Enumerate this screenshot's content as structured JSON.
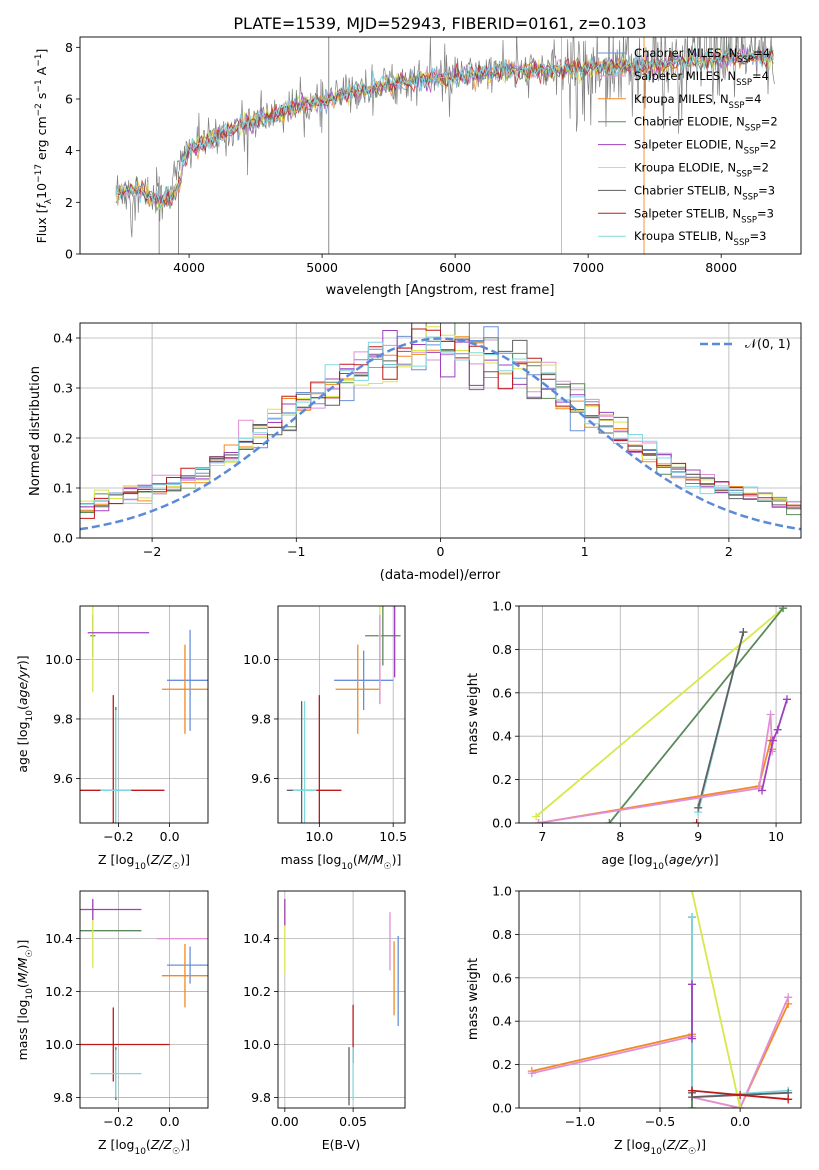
{
  "figure": {
    "title": "PLATE=1539, MJD=52943, FIBERID=0161, z=0.103"
  },
  "legend_top": [
    {
      "label": "Chabrier MILES, N",
      "sub": "SSP",
      "tail": "=4",
      "color": "#6a8fd8"
    },
    {
      "label": "Salpeter MILES, N",
      "sub": "SSP",
      "tail": "=4",
      "color": "#e08fd8"
    },
    {
      "label": "Kroupa MILES, N",
      "sub": "SSP",
      "tail": "=4",
      "color": "#f08a22"
    },
    {
      "label": "Chabrier ELODIE, N",
      "sub": "SSP",
      "tail": "=2",
      "color": "#5a8a5a"
    },
    {
      "label": "Salpeter ELODIE, N",
      "sub": "SSP",
      "tail": "=2",
      "color": "#a040c0"
    },
    {
      "label": "Kroupa ELODIE, N",
      "sub": "SSP",
      "tail": "=2",
      "color": "#d8e84a"
    },
    {
      "label": "Chabrier STELIB, N",
      "sub": "SSP",
      "tail": "=3",
      "color": "#606060"
    },
    {
      "label": "Salpeter STELIB, N",
      "sub": "SSP",
      "tail": "=3",
      "color": "#c01818"
    },
    {
      "label": "Kroupa STELIB, N",
      "sub": "SSP",
      "tail": "=3",
      "color": "#80d8e0"
    }
  ],
  "colors": [
    "#6a8fd8",
    "#e08fd8",
    "#f08a22",
    "#5a8a5a",
    "#a040c0",
    "#d8e84a",
    "#606060",
    "#c01818",
    "#80d8e0"
  ],
  "axes_text": {
    "spec_xlabel": "wavelength [Angstrom, rest frame]",
    "spec_ylabel": "Flux [f",
    "hist_xlabel": "(data-model)/error",
    "hist_ylabel": "Normed distribution",
    "hist_legend": "𝒩(0, 1)",
    "age_ylabel": "age  [log",
    "z_xlabel": "Z [log",
    "mass_xlabel": "mass [log",
    "mw_ylabel": "mass weight",
    "age_xlabel": "age  [log",
    "mass_ylabel": "mass [log",
    "ebv_xlabel": "E(B-V)"
  },
  "chart_data": [
    {
      "type": "line",
      "title": "PLATE=1539, MJD=52943, FIBERID=0161, z=0.103",
      "xlabel": "wavelength [Angstrom, rest frame]",
      "ylabel": "Flux [f_λ 10^-17 erg cm^-2 s^-1 A^-1]",
      "xlim": [
        3180,
        8600
      ],
      "ylim": [
        0,
        8.4
      ],
      "xticks": [
        4000,
        5000,
        6000,
        7000,
        8000
      ],
      "yticks": [
        0,
        2,
        4,
        6,
        8
      ],
      "continuum": {
        "x": [
          3450,
          3600,
          3800,
          4000,
          4200,
          4400,
          4600,
          4800,
          5000,
          5200,
          5500,
          6000,
          6500,
          7000,
          7500,
          8000,
          8400
        ],
        "y": [
          2.4,
          2.5,
          2.0,
          4.1,
          4.5,
          5.0,
          5.3,
          5.7,
          5.9,
          6.2,
          6.6,
          6.9,
          7.1,
          7.2,
          7.3,
          7.6,
          7.6
        ]
      },
      "data_noise_amplitude": 0.9,
      "grid": false,
      "legend": "top-right"
    },
    {
      "type": "histogram",
      "xlabel": "(data-model)/error",
      "ylabel": "Normed distribution",
      "xlim": [
        -2.5,
        2.5
      ],
      "ylim": [
        0,
        0.43
      ],
      "xticks": [
        -2,
        -1,
        0,
        1,
        2
      ],
      "yticks": [
        0.0,
        0.1,
        0.2,
        0.3,
        0.4
      ],
      "bin_width": 0.1,
      "reference": {
        "name": "𝒩(0, 1)",
        "mean": 0,
        "sigma": 1,
        "style": "dashed"
      },
      "grid": true,
      "legend": "top-right"
    },
    {
      "type": "scatter",
      "xlabel": "Z [log10(Z/Z☉)]",
      "ylabel": "age [log10(age/yr)]",
      "xlim": [
        -0.35,
        0.15
      ],
      "ylim": [
        9.45,
        10.18
      ],
      "xticks": [
        -0.2,
        0.0
      ],
      "yticks": [
        9.6,
        9.8,
        10.0
      ],
      "points": [
        {
          "x": 0.08,
          "y": 10.1,
          "xe": 0.0,
          "ye": 0.0,
          "color": "#6a8fd8"
        },
        {
          "x": 0.08,
          "y": 9.93,
          "xe": 0.09,
          "ye": 0.17,
          "color": "#6a8fd8"
        },
        {
          "x": 0.06,
          "y": 9.9,
          "xe": 0.09,
          "ye": 0.15,
          "color": "#f08a22"
        },
        {
          "x": -0.3,
          "y": 10.08,
          "xe": 0.01,
          "ye": 0.07,
          "color": "#5a8a5a"
        },
        {
          "x": -0.3,
          "y": 10.08,
          "xe": 0.0,
          "ye": 0.19,
          "color": "#d8e84a"
        },
        {
          "x": -0.2,
          "y": 10.09,
          "xe": 0.12,
          "ye": 0.0,
          "color": "#a040c0"
        },
        {
          "x": -0.21,
          "y": 9.56,
          "xe": 0.0,
          "ye": 0.28,
          "color": "#606060"
        },
        {
          "x": -0.2,
          "y": 9.56,
          "xe": 0.18,
          "ye": 0.0,
          "color": "#c01818"
        },
        {
          "x": -0.22,
          "y": 9.56,
          "xe": 0.0,
          "ye": 0.32,
          "color": "#c01818"
        },
        {
          "x": -0.21,
          "y": 9.56,
          "xe": 0.06,
          "ye": 0.27,
          "color": "#80d8e0"
        }
      ],
      "grid": true
    },
    {
      "type": "scatter",
      "xlabel": "mass [log10(M/M☉)]",
      "ylabel": "",
      "xlim": [
        9.72,
        10.58
      ],
      "ylim": [
        9.45,
        10.18
      ],
      "xticks": [
        10.0,
        10.5
      ],
      "yticks": [
        9.6,
        9.8,
        10.0
      ],
      "points": [
        {
          "x": 10.3,
          "y": 9.93,
          "xe": 0.2,
          "ye": 0.1,
          "color": "#6a8fd8"
        },
        {
          "x": 10.26,
          "y": 9.9,
          "xe": 0.15,
          "ye": 0.15,
          "color": "#f08a22"
        },
        {
          "x": 10.43,
          "y": 10.08,
          "xe": 0.12,
          "ye": 0.1,
          "color": "#5a8a5a"
        },
        {
          "x": 10.41,
          "y": 10.08,
          "xe": 0.01,
          "ye": 0.23,
          "color": "#d8e84a"
        },
        {
          "x": 10.51,
          "y": 10.09,
          "xe": 0.0,
          "ye": 0.15,
          "color": "#a040c0"
        },
        {
          "x": 10.41,
          "y": 10.0,
          "xe": 0.0,
          "ye": 0.15,
          "color": "#e08fd8"
        },
        {
          "x": 9.88,
          "y": 9.56,
          "xe": 0.1,
          "ye": 0.3,
          "color": "#606060"
        },
        {
          "x": 10.0,
          "y": 9.56,
          "xe": 0.15,
          "ye": 0.32,
          "color": "#c01818"
        },
        {
          "x": 9.9,
          "y": 9.56,
          "xe": 0.08,
          "ye": 0.3,
          "color": "#80d8e0"
        }
      ],
      "grid": true
    },
    {
      "type": "line",
      "xlabel": "age [log10(age/yr)]",
      "ylabel": "mass weight",
      "xlim": [
        6.7,
        10.32
      ],
      "ylim": [
        0,
        1.0
      ],
      "xticks": [
        7,
        8,
        9,
        10
      ],
      "yticks": [
        0.0,
        0.2,
        0.4,
        0.6,
        0.8,
        1.0
      ],
      "series": [
        {
          "color": "#d8e84a",
          "x": [
            6.92,
            10.09
          ],
          "y": [
            0.03,
            0.99
          ]
        },
        {
          "color": "#5a8a5a",
          "x": [
            7.86,
            10.09
          ],
          "y": [
            0.0,
            0.99
          ]
        },
        {
          "color": "#80d8e0",
          "x": [
            9.0,
            9.58
          ],
          "y": [
            0.05,
            0.88
          ]
        },
        {
          "color": "#606060",
          "x": [
            9.0,
            9.58
          ],
          "y": [
            0.07,
            0.88
          ]
        },
        {
          "color": "#f08a22",
          "x": [
            6.95,
            9.78,
            9.93,
            9.95
          ],
          "y": [
            0.0,
            0.17,
            0.38,
            0.34
          ]
        },
        {
          "color": "#e08fd8",
          "x": [
            6.95,
            9.78,
            9.93,
            9.95
          ],
          "y": [
            0.0,
            0.16,
            0.5,
            0.33
          ]
        },
        {
          "color": "#a040c0",
          "x": [
            9.82,
            9.96,
            10.02,
            10.14
          ],
          "y": [
            0.15,
            0.38,
            0.43,
            0.57
          ]
        },
        {
          "color": "#c01818",
          "x": [
            8.98
          ],
          "y": [
            0.0
          ]
        }
      ],
      "grid": true
    },
    {
      "type": "scatter",
      "xlabel": "Z [log10(Z/Z☉)]",
      "ylabel": "mass [log10(M/M☉)]",
      "xlim": [
        -0.35,
        0.15
      ],
      "ylim": [
        9.76,
        10.58
      ],
      "xticks": [
        -0.2,
        0.0
      ],
      "yticks": [
        9.8,
        10.0,
        10.2,
        10.4
      ],
      "points": [
        {
          "x": 0.08,
          "y": 10.3,
          "xe": 0.09,
          "ye": 0.07,
          "color": "#6a8fd8"
        },
        {
          "x": 0.06,
          "y": 10.26,
          "xe": 0.09,
          "ye": 0.12,
          "color": "#f08a22"
        },
        {
          "x": 0.06,
          "y": 10.4,
          "xe": 0.11,
          "ye": 0.0,
          "color": "#e08fd8"
        },
        {
          "x": -0.3,
          "y": 10.43,
          "xe": 0.19,
          "ye": 0.0,
          "color": "#5a8a5a"
        },
        {
          "x": -0.3,
          "y": 10.41,
          "xe": 0.0,
          "ye": 0.12,
          "color": "#d8e84a"
        },
        {
          "x": -0.3,
          "y": 10.51,
          "xe": 0.19,
          "ye": 0.04,
          "color": "#a040c0"
        },
        {
          "x": -0.21,
          "y": 9.89,
          "xe": 0.0,
          "ye": 0.1,
          "color": "#606060"
        },
        {
          "x": -0.22,
          "y": 10.0,
          "xe": 0.22,
          "ye": 0.14,
          "color": "#c01818"
        },
        {
          "x": -0.21,
          "y": 9.89,
          "xe": 0.1,
          "ye": 0.09,
          "color": "#80d8e0"
        }
      ],
      "grid": true
    },
    {
      "type": "scatter",
      "xlabel": "E(B-V)",
      "ylabel": "",
      "xlim": [
        -0.005,
        0.088
      ],
      "ylim": [
        9.76,
        10.58
      ],
      "xticks": [
        0.0,
        0.05
      ],
      "yticks": [
        9.8,
        10.0,
        10.2,
        10.4
      ],
      "points": [
        {
          "x": 0.083,
          "y": 10.24,
          "xe": 0.0,
          "ye": 0.17,
          "color": "#6a8fd8"
        },
        {
          "x": 0.08,
          "y": 10.25,
          "xe": 0.0,
          "ye": 0.14,
          "color": "#f08a22"
        },
        {
          "x": 0.077,
          "y": 10.39,
          "xe": 0.0,
          "ye": 0.11,
          "color": "#e08fd8"
        },
        {
          "x": 0.0,
          "y": 10.41,
          "xe": 0.0,
          "ye": 0.14,
          "color": "#d8e84a"
        },
        {
          "x": 0.0,
          "y": 10.5,
          "xe": 0.0,
          "ye": 0.05,
          "color": "#a040c0"
        },
        {
          "x": 0.047,
          "y": 9.88,
          "xe": 0.0,
          "ye": 0.11,
          "color": "#606060"
        },
        {
          "x": 0.05,
          "y": 10.04,
          "xe": 0.0,
          "ye": 0.11,
          "color": "#c01818"
        },
        {
          "x": 0.05,
          "y": 9.89,
          "xe": 0.0,
          "ye": 0.1,
          "color": "#80d8e0"
        }
      ],
      "grid": true
    },
    {
      "type": "line",
      "xlabel": "Z [log10(Z/Z☉)]",
      "ylabel": "mass weight",
      "xlim": [
        -1.38,
        0.38
      ],
      "ylim": [
        0,
        1.0
      ],
      "xticks": [
        -1.0,
        -0.5,
        0.0
      ],
      "yticks": [
        0.0,
        0.2,
        0.4,
        0.6,
        0.8,
        1.0
      ],
      "series": [
        {
          "color": "#f08a22",
          "x": [
            -1.3,
            -0.3,
            -0.3,
            0.0,
            0.3
          ],
          "y": [
            0.17,
            0.34,
            0.05,
            0.0,
            0.48
          ]
        },
        {
          "color": "#e08fd8",
          "x": [
            -1.3,
            -0.3,
            -0.3,
            0.0,
            0.3
          ],
          "y": [
            0.16,
            0.33,
            0.05,
            0.0,
            0.51
          ]
        },
        {
          "color": "#d8e84a",
          "x": [
            -0.3,
            0.0
          ],
          "y": [
            1.0,
            0.0
          ]
        },
        {
          "color": "#5a8a5a",
          "x": [
            -0.3,
            -0.3
          ],
          "y": [
            0.0,
            0.88
          ]
        },
        {
          "color": "#80d8e0",
          "x": [
            -0.3,
            -0.3,
            0.3
          ],
          "y": [
            0.88,
            0.05,
            0.08
          ]
        },
        {
          "color": "#606060",
          "x": [
            -0.3,
            -0.3,
            0.3
          ],
          "y": [
            0.07,
            0.05,
            0.07
          ]
        },
        {
          "color": "#c01818",
          "x": [
            -0.3,
            0.0,
            0.3
          ],
          "y": [
            0.08,
            0.06,
            0.04
          ]
        },
        {
          "color": "#a040c0",
          "x": [
            -0.3,
            -0.3
          ],
          "y": [
            0.57,
            0.32
          ]
        }
      ],
      "grid": true
    }
  ]
}
